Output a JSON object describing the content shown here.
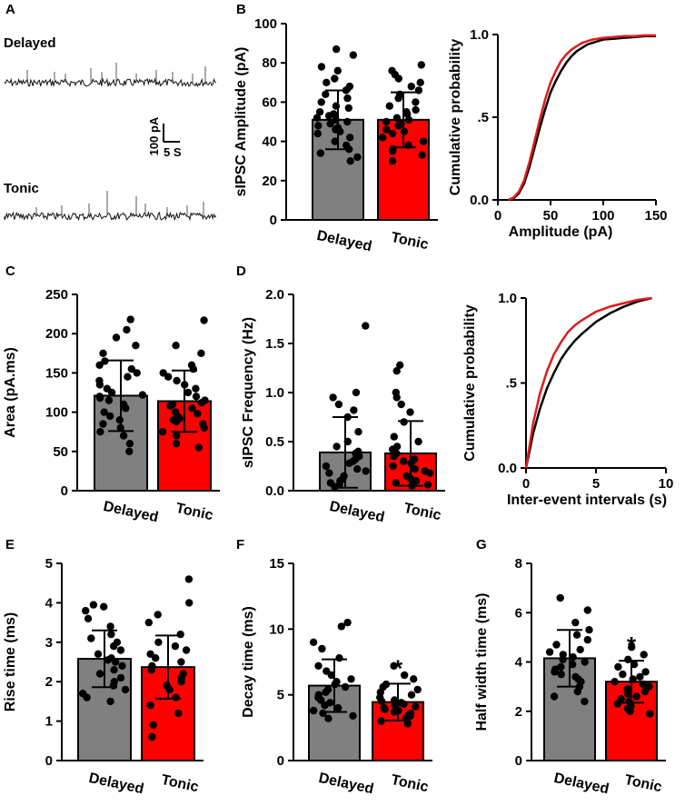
{
  "colors": {
    "delayed": "#808080",
    "tonic": "#ff0000",
    "delayed_curve": "#000000",
    "tonic_curve": "#e01a1a"
  },
  "traces": {
    "panel": "A",
    "delayed_label": "Delayed",
    "tonic_label": "Tonic",
    "scale_y": "100 pA",
    "scale_x": "5 S"
  },
  "chart_data": [
    {
      "panel": "B",
      "type": "bar",
      "title": "",
      "ylabel": "sIPSC Amplitude (pA)",
      "categories": [
        "Delayed",
        "Tonic"
      ],
      "values": [
        51,
        51
      ],
      "errors": [
        15,
        14
      ],
      "ylim": [
        0,
        100
      ],
      "yticks": [
        0,
        20,
        40,
        60,
        80,
        100
      ],
      "ytick_labels": [
        "0",
        "20",
        "40",
        "60",
        "80",
        "100"
      ],
      "significance": [
        "",
        ""
      ],
      "points": [
        [
          87,
          84,
          78,
          76,
          72,
          70,
          68,
          66,
          64,
          62,
          60,
          58,
          57,
          55,
          54,
          53,
          52,
          51,
          50,
          49,
          48,
          47,
          46,
          45,
          44,
          42,
          40,
          38,
          36,
          34,
          32,
          30
        ],
        [
          79,
          76,
          74,
          72,
          70,
          68,
          66,
          64,
          62,
          60,
          58,
          56,
          55,
          54,
          52,
          51,
          50,
          49,
          48,
          46,
          45,
          44,
          42,
          40,
          38,
          36,
          35,
          33,
          30
        ]
      ]
    },
    {
      "panel": "",
      "type": "line",
      "title": "",
      "xlabel": "Amplitude (pA)",
      "ylabel": "Cumulative probability",
      "xlim": [
        0,
        150
      ],
      "ylim": [
        0,
        1
      ],
      "xticks": [
        0,
        50,
        100,
        150
      ],
      "xtick_labels": [
        "0",
        "50",
        "100",
        "150"
      ],
      "yticks": [
        0,
        0.5,
        1
      ],
      "ytick_labels": [
        "0.0",
        ".5",
        "1.0"
      ],
      "series": [
        {
          "name": "Delayed",
          "x": [
            10,
            15,
            20,
            25,
            30,
            35,
            40,
            45,
            50,
            55,
            60,
            65,
            70,
            75,
            80,
            85,
            90,
            95,
            100,
            110,
            120,
            130,
            140,
            150
          ],
          "y": [
            0,
            0.01,
            0.04,
            0.1,
            0.2,
            0.32,
            0.44,
            0.55,
            0.65,
            0.72,
            0.78,
            0.83,
            0.87,
            0.9,
            0.92,
            0.94,
            0.95,
            0.96,
            0.97,
            0.975,
            0.98,
            0.985,
            0.99,
            0.99
          ]
        },
        {
          "name": "Tonic",
          "x": [
            10,
            15,
            20,
            25,
            30,
            35,
            40,
            45,
            50,
            55,
            60,
            65,
            70,
            75,
            80,
            85,
            90,
            95,
            100,
            110,
            120,
            130,
            140,
            150
          ],
          "y": [
            0,
            0.015,
            0.05,
            0.12,
            0.23,
            0.36,
            0.49,
            0.61,
            0.71,
            0.78,
            0.84,
            0.88,
            0.91,
            0.93,
            0.95,
            0.96,
            0.97,
            0.975,
            0.98,
            0.985,
            0.99,
            0.99,
            0.995,
            0.995
          ]
        }
      ]
    },
    {
      "panel": "C",
      "type": "bar",
      "title": "",
      "ylabel": "Area (pA.ms)",
      "categories": [
        "Delayed",
        "Tonic"
      ],
      "values": [
        121,
        114
      ],
      "errors": [
        45,
        39
      ],
      "ylim": [
        0,
        250
      ],
      "yticks": [
        0,
        50,
        100,
        150,
        200,
        250
      ],
      "ytick_labels": [
        "0",
        "50",
        "100",
        "150",
        "200",
        "250"
      ],
      "significance": [
        "",
        ""
      ],
      "points": [
        [
          218,
          205,
          195,
          185,
          175,
          165,
          160,
          155,
          150,
          145,
          140,
          135,
          130,
          125,
          122,
          120,
          118,
          115,
          110,
          105,
          100,
          95,
          90,
          85,
          80,
          75,
          70,
          60,
          50
        ],
        [
          217,
          185,
          175,
          160,
          155,
          150,
          145,
          140,
          135,
          130,
          125,
          120,
          115,
          112,
          110,
          108,
          105,
          100,
          98,
          95,
          92,
          90,
          88,
          85,
          80,
          75,
          70,
          60,
          55
        ]
      ]
    },
    {
      "panel": "D",
      "type": "bar",
      "title": "",
      "ylabel": "sIPSC Frequency (Hz)",
      "categories": [
        "Delayed",
        "Tonic"
      ],
      "values": [
        0.39,
        0.38
      ],
      "errors": [
        0.36,
        0.33
      ],
      "ylim": [
        0,
        2
      ],
      "yticks": [
        0,
        0.5,
        1,
        1.5,
        2
      ],
      "ytick_labels": [
        "0.0",
        "0.5",
        "1.0",
        "1.5",
        "2.0"
      ],
      "significance": [
        "",
        ""
      ],
      "points": [
        [
          1.68,
          1.0,
          0.95,
          0.88,
          0.82,
          0.75,
          0.6,
          0.5,
          0.45,
          0.4,
          0.38,
          0.35,
          0.32,
          0.3,
          0.28,
          0.25,
          0.22,
          0.2,
          0.18,
          0.15,
          0.12,
          0.1,
          0.08,
          0.06,
          0.04
        ],
        [
          1.28,
          1.22,
          1.0,
          0.95,
          0.88,
          0.8,
          0.7,
          0.55,
          0.5,
          0.45,
          0.42,
          0.38,
          0.35,
          0.32,
          0.3,
          0.28,
          0.25,
          0.22,
          0.2,
          0.18,
          0.15,
          0.12,
          0.1,
          0.08,
          0.06,
          0.05
        ]
      ]
    },
    {
      "panel": "",
      "type": "line",
      "title": "",
      "xlabel": "Inter-event intervals (s)",
      "ylabel": "Cumulative probability",
      "xlim": [
        0,
        10
      ],
      "ylim": [
        0,
        1
      ],
      "xticks": [
        0,
        5,
        10
      ],
      "xtick_labels": [
        "0",
        "5",
        "10"
      ],
      "yticks": [
        0,
        0.5,
        1
      ],
      "ytick_labels": [
        "0.0",
        ".5",
        "1.0"
      ],
      "series": [
        {
          "name": "Delayed",
          "x": [
            0,
            0.25,
            0.5,
            1,
            1.5,
            2,
            2.5,
            3,
            3.5,
            4,
            5,
            6,
            7,
            8,
            9
          ],
          "y": [
            0,
            0.1,
            0.2,
            0.35,
            0.47,
            0.56,
            0.64,
            0.7,
            0.75,
            0.79,
            0.86,
            0.91,
            0.95,
            0.98,
            1.0
          ]
        },
        {
          "name": "Tonic",
          "x": [
            0,
            0.25,
            0.5,
            1,
            1.5,
            2,
            2.5,
            3,
            3.5,
            4,
            5,
            6,
            7,
            8,
            9
          ],
          "y": [
            0,
            0.13,
            0.26,
            0.44,
            0.57,
            0.67,
            0.74,
            0.8,
            0.84,
            0.87,
            0.92,
            0.95,
            0.97,
            0.99,
            1.0
          ]
        }
      ]
    },
    {
      "panel": "E",
      "type": "bar",
      "title": "",
      "ylabel": "Rise  time (ms)",
      "categories": [
        "Delayed",
        "Tonic"
      ],
      "values": [
        2.58,
        2.37
      ],
      "errors": [
        0.72,
        0.8
      ],
      "ylim": [
        0,
        5
      ],
      "yticks": [
        0,
        1,
        2,
        3,
        4,
        5
      ],
      "ytick_labels": [
        "0",
        "1",
        "2",
        "3",
        "4",
        "5"
      ],
      "significance": [
        "",
        ""
      ],
      "points": [
        [
          3.95,
          3.9,
          3.8,
          3.6,
          3.4,
          3.2,
          3.1,
          3.0,
          2.9,
          2.8,
          2.7,
          2.6,
          2.55,
          2.5,
          2.4,
          2.3,
          2.2,
          2.1,
          2.0,
          1.9,
          1.8,
          1.7,
          1.6,
          1.5
        ],
        [
          4.6,
          4.0,
          3.7,
          3.5,
          3.2,
          3.0,
          2.9,
          2.8,
          2.7,
          2.6,
          2.5,
          2.4,
          2.3,
          2.2,
          2.1,
          2.0,
          1.9,
          1.8,
          1.6,
          1.4,
          1.2,
          0.9,
          0.6
        ]
      ]
    },
    {
      "panel": "F",
      "type": "bar",
      "title": "",
      "ylabel": "Decay  time (ms)",
      "categories": [
        "Delayed",
        "Tonic"
      ],
      "values": [
        5.7,
        4.45
      ],
      "errors": [
        2.0,
        1.4
      ],
      "ylim": [
        0,
        15
      ],
      "yticks": [
        0,
        5,
        10,
        15
      ],
      "ytick_labels": [
        "0",
        "5",
        "10",
        "15"
      ],
      "significance": [
        "",
        "*"
      ],
      "points": [
        [
          10.5,
          10.2,
          9.0,
          8.5,
          7.8,
          7.2,
          6.8,
          6.5,
          6.2,
          6.0,
          5.8,
          5.6,
          5.4,
          5.2,
          5.0,
          4.8,
          4.6,
          4.4,
          4.2,
          4.0,
          3.8,
          3.6,
          3.4,
          3.2
        ],
        [
          7.2,
          6.5,
          6.2,
          5.8,
          5.6,
          5.4,
          5.2,
          5.0,
          4.8,
          4.6,
          4.5,
          4.4,
          4.3,
          4.2,
          4.1,
          4.0,
          3.9,
          3.8,
          3.7,
          3.6,
          3.5,
          3.4,
          3.2,
          3.0,
          2.8
        ]
      ]
    },
    {
      "panel": "G",
      "type": "bar",
      "title": "",
      "ylabel": "Half width  time (ms)",
      "categories": [
        "Delayed",
        "Tonic"
      ],
      "values": [
        4.15,
        3.2
      ],
      "errors": [
        1.15,
        0.85
      ],
      "ylim": [
        0,
        8
      ],
      "yticks": [
        0,
        2,
        4,
        6,
        8
      ],
      "ytick_labels": [
        "0",
        "2",
        "4",
        "6",
        "8"
      ],
      "significance": [
        "",
        "*"
      ],
      "points": [
        [
          6.6,
          6.1,
          5.6,
          5.3,
          5.1,
          4.9,
          4.7,
          4.5,
          4.4,
          4.3,
          4.2,
          4.1,
          4.0,
          3.9,
          3.8,
          3.7,
          3.6,
          3.5,
          3.4,
          3.3,
          3.2,
          3.0,
          2.8,
          2.6,
          2.4
        ],
        [
          4.6,
          4.3,
          4.1,
          3.9,
          3.8,
          3.6,
          3.5,
          3.4,
          3.3,
          3.2,
          3.1,
          3.0,
          2.9,
          2.8,
          2.7,
          2.6,
          2.5,
          2.4,
          2.3,
          2.2,
          2.1,
          2.0,
          1.9
        ]
      ]
    }
  ]
}
